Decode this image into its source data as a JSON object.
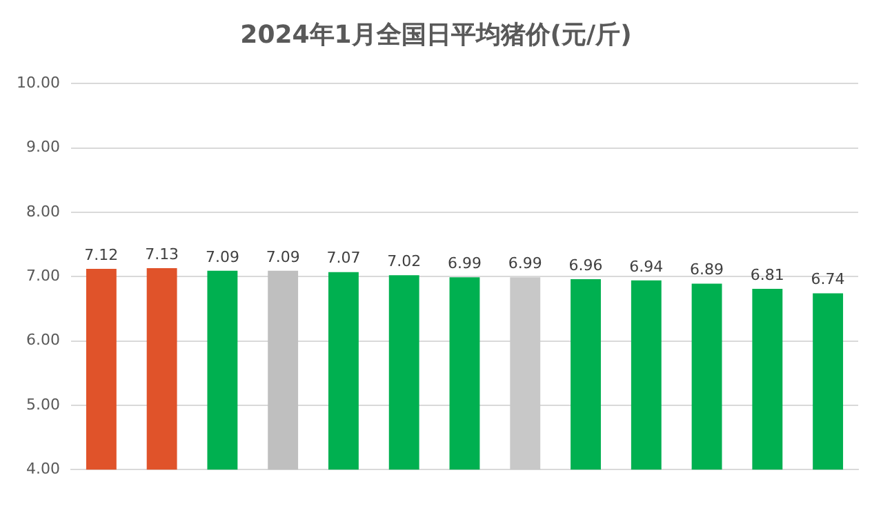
{
  "chart_data": {
    "type": "bar",
    "title": "2024年1月全国日平均猪价(元/斤)",
    "categories": [
      null,
      null,
      null,
      null,
      null,
      null,
      null,
      null,
      null,
      null,
      null,
      null,
      null
    ],
    "values": [
      7.12,
      7.13,
      7.09,
      7.09,
      7.07,
      7.02,
      6.99,
      6.99,
      6.96,
      6.94,
      6.89,
      6.81,
      6.74
    ],
    "colors": [
      "#e0532a",
      "#e0532a",
      "#00b050",
      "#bfbfbf",
      "#00b050",
      "#00b050",
      "#00b050",
      "#c8c8c8",
      "#00b050",
      "#00b050",
      "#00b050",
      "#00b050",
      "#00b050"
    ],
    "ylim": [
      4,
      10
    ],
    "yticks": [
      {
        "value": 4,
        "label": "4.00"
      },
      {
        "value": 5,
        "label": "5.00"
      },
      {
        "value": 6,
        "label": "6.00"
      },
      {
        "value": 7,
        "label": "7.00"
      },
      {
        "value": 8,
        "label": "8.00"
      },
      {
        "value": 9,
        "label": "9.00"
      },
      {
        "value": 10,
        "label": "10.00"
      }
    ],
    "grid": "y",
    "data_labels": true
  }
}
